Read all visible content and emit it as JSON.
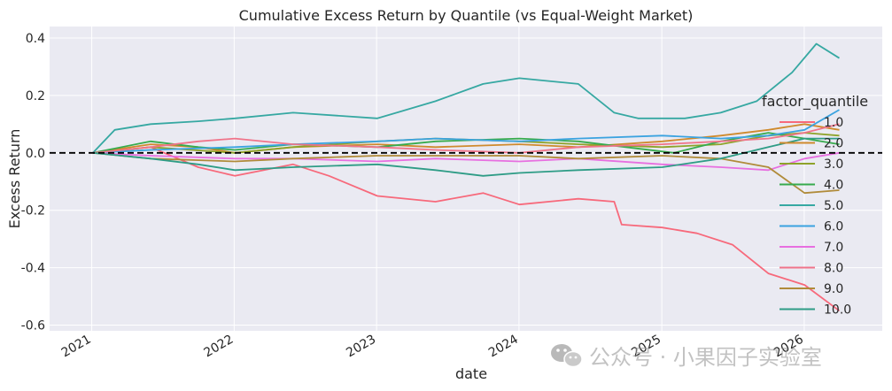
{
  "chart_data": {
    "type": "line",
    "title": "Cumulative Excess Return by Quantile (vs Equal-Weight Market)",
    "xlabel": "date",
    "ylabel": "Excess Return",
    "x_tick_labels": [
      "2021",
      "2022",
      "2023",
      "2024",
      "2025",
      "2026"
    ],
    "y_tick_labels": [
      "-0.6",
      "-0.4",
      "-0.2",
      "0.0",
      "0.2",
      "0.4"
    ],
    "y_ticks": [
      -0.6,
      -0.4,
      -0.2,
      0.0,
      0.2,
      0.4
    ],
    "xlim": [
      "2020-09-15",
      "2026-07-20"
    ],
    "ylim": [
      -0.62,
      0.44
    ],
    "reference_line": {
      "y": 0.0,
      "style": "dashed",
      "color": "#000000"
    },
    "grid": true,
    "legend": {
      "title": "factor_quantile",
      "placement": "right"
    },
    "colors": {
      "axes_bg": "#eaeaf2",
      "grid": "#ffffff",
      "tick_text": "#262626"
    },
    "series": [
      {
        "name": "1.0",
        "color": "#f7697b",
        "points": [
          [
            "2021-01-04",
            0.0
          ],
          [
            "2021-06-01",
            0.02
          ],
          [
            "2021-10-01",
            -0.05
          ],
          [
            "2022-01-03",
            -0.08
          ],
          [
            "2022-06-01",
            -0.04
          ],
          [
            "2022-09-01",
            -0.08
          ],
          [
            "2023-01-03",
            -0.15
          ],
          [
            "2023-06-01",
            -0.17
          ],
          [
            "2023-10-01",
            -0.14
          ],
          [
            "2024-01-02",
            -0.18
          ],
          [
            "2024-06-01",
            -0.16
          ],
          [
            "2024-09-01",
            -0.17
          ],
          [
            "2024-09-20",
            -0.25
          ],
          [
            "2025-01-02",
            -0.26
          ],
          [
            "2025-04-01",
            -0.28
          ],
          [
            "2025-07-01",
            -0.32
          ],
          [
            "2025-10-01",
            -0.42
          ],
          [
            "2026-01-02",
            -0.46
          ],
          [
            "2026-04-01",
            -0.55
          ]
        ]
      },
      {
        "name": "2.0",
        "color": "#cf8a2d",
        "points": [
          [
            "2021-01-04",
            0.0
          ],
          [
            "2021-06-01",
            0.03
          ],
          [
            "2021-10-01",
            0.02
          ],
          [
            "2022-01-03",
            0.0
          ],
          [
            "2022-06-01",
            0.02
          ],
          [
            "2023-01-03",
            0.03
          ],
          [
            "2023-06-01",
            0.02
          ],
          [
            "2024-01-02",
            0.03
          ],
          [
            "2024-06-01",
            0.02
          ],
          [
            "2025-01-02",
            0.04
          ],
          [
            "2025-06-01",
            0.06
          ],
          [
            "2025-10-01",
            0.08
          ],
          [
            "2026-01-02",
            0.1
          ],
          [
            "2026-04-01",
            0.08
          ]
        ]
      },
      {
        "name": "3.0",
        "color": "#8ea32a",
        "points": [
          [
            "2021-01-04",
            0.0
          ],
          [
            "2021-06-01",
            0.02
          ],
          [
            "2022-01-03",
            0.0
          ],
          [
            "2022-06-01",
            0.02
          ],
          [
            "2023-01-03",
            0.04
          ],
          [
            "2023-06-01",
            0.05
          ],
          [
            "2024-01-02",
            0.04
          ],
          [
            "2024-06-01",
            0.03
          ],
          [
            "2025-01-02",
            0.02
          ],
          [
            "2025-06-01",
            0.03
          ],
          [
            "2025-10-01",
            0.06
          ],
          [
            "2026-01-02",
            0.07
          ],
          [
            "2026-04-01",
            0.06
          ]
        ]
      },
      {
        "name": "4.0",
        "color": "#37ab4d",
        "points": [
          [
            "2021-01-04",
            0.0
          ],
          [
            "2021-06-01",
            0.04
          ],
          [
            "2021-10-01",
            0.02
          ],
          [
            "2022-01-03",
            0.01
          ],
          [
            "2022-06-01",
            0.03
          ],
          [
            "2023-01-03",
            0.02
          ],
          [
            "2023-06-01",
            0.04
          ],
          [
            "2024-01-02",
            0.05
          ],
          [
            "2024-06-01",
            0.04
          ],
          [
            "2024-10-01",
            0.02
          ],
          [
            "2025-02-01",
            0.0
          ],
          [
            "2025-06-01",
            0.04
          ],
          [
            "2025-10-01",
            0.07
          ],
          [
            "2026-01-02",
            0.05
          ],
          [
            "2026-04-01",
            0.03
          ]
        ]
      },
      {
        "name": "5.0",
        "color": "#36a8a2",
        "points": [
          [
            "2021-01-04",
            0.0
          ],
          [
            "2021-03-01",
            0.08
          ],
          [
            "2021-06-01",
            0.1
          ],
          [
            "2021-10-01",
            0.11
          ],
          [
            "2022-01-03",
            0.12
          ],
          [
            "2022-06-01",
            0.14
          ],
          [
            "2023-01-03",
            0.12
          ],
          [
            "2023-06-01",
            0.18
          ],
          [
            "2023-10-01",
            0.24
          ],
          [
            "2024-01-02",
            0.26
          ],
          [
            "2024-06-01",
            0.24
          ],
          [
            "2024-09-01",
            0.14
          ],
          [
            "2024-11-01",
            0.12
          ],
          [
            "2025-03-01",
            0.12
          ],
          [
            "2025-06-01",
            0.14
          ],
          [
            "2025-09-01",
            0.18
          ],
          [
            "2025-12-01",
            0.28
          ],
          [
            "2026-02-01",
            0.38
          ],
          [
            "2026-04-01",
            0.33
          ]
        ]
      },
      {
        "name": "6.0",
        "color": "#3ba3e0",
        "points": [
          [
            "2021-01-04",
            0.0
          ],
          [
            "2021-06-01",
            0.01
          ],
          [
            "2022-01-03",
            0.02
          ],
          [
            "2022-06-01",
            0.03
          ],
          [
            "2023-01-03",
            0.04
          ],
          [
            "2023-06-01",
            0.05
          ],
          [
            "2024-01-02",
            0.04
          ],
          [
            "2024-06-01",
            0.05
          ],
          [
            "2025-01-02",
            0.06
          ],
          [
            "2025-06-01",
            0.05
          ],
          [
            "2025-10-01",
            0.06
          ],
          [
            "2026-01-02",
            0.08
          ],
          [
            "2026-04-01",
            0.15
          ]
        ]
      },
      {
        "name": "7.0",
        "color": "#e76fe0",
        "points": [
          [
            "2021-01-04",
            0.0
          ],
          [
            "2021-06-01",
            -0.01
          ],
          [
            "2022-01-03",
            -0.02
          ],
          [
            "2022-06-01",
            -0.02
          ],
          [
            "2023-01-03",
            -0.03
          ],
          [
            "2023-06-01",
            -0.02
          ],
          [
            "2024-01-02",
            -0.03
          ],
          [
            "2024-06-01",
            -0.02
          ],
          [
            "2025-01-02",
            -0.04
          ],
          [
            "2025-06-01",
            -0.05
          ],
          [
            "2025-10-01",
            -0.06
          ],
          [
            "2026-01-02",
            -0.02
          ],
          [
            "2026-04-01",
            0.0
          ]
        ]
      },
      {
        "name": "8.0",
        "color": "#f0748a",
        "points": [
          [
            "2021-01-04",
            0.0
          ],
          [
            "2021-06-01",
            0.02
          ],
          [
            "2021-10-01",
            0.04
          ],
          [
            "2022-01-03",
            0.05
          ],
          [
            "2022-06-01",
            0.03
          ],
          [
            "2023-01-03",
            0.02
          ],
          [
            "2023-06-01",
            0.01
          ],
          [
            "2024-01-02",
            0.0
          ],
          [
            "2024-06-01",
            0.02
          ],
          [
            "2025-01-02",
            0.03
          ],
          [
            "2025-06-01",
            0.04
          ],
          [
            "2025-10-01",
            0.05
          ],
          [
            "2026-01-02",
            0.07
          ],
          [
            "2026-04-01",
            0.1
          ]
        ]
      },
      {
        "name": "9.0",
        "color": "#b08b3a",
        "points": [
          [
            "2021-01-04",
            0.0
          ],
          [
            "2021-06-01",
            -0.02
          ],
          [
            "2022-01-03",
            -0.03
          ],
          [
            "2022-06-01",
            -0.02
          ],
          [
            "2023-01-03",
            -0.01
          ],
          [
            "2023-06-01",
            -0.01
          ],
          [
            "2024-01-02",
            -0.01
          ],
          [
            "2024-06-01",
            -0.02
          ],
          [
            "2025-01-02",
            -0.01
          ],
          [
            "2025-06-01",
            -0.02
          ],
          [
            "2025-10-01",
            -0.05
          ],
          [
            "2026-01-02",
            -0.14
          ],
          [
            "2026-04-01",
            -0.13
          ]
        ]
      },
      {
        "name": "10.0",
        "color": "#2e9c86",
        "points": [
          [
            "2021-01-04",
            0.0
          ],
          [
            "2021-06-01",
            -0.02
          ],
          [
            "2021-10-01",
            -0.04
          ],
          [
            "2022-01-03",
            -0.06
          ],
          [
            "2022-06-01",
            -0.05
          ],
          [
            "2023-01-03",
            -0.04
          ],
          [
            "2023-06-01",
            -0.06
          ],
          [
            "2023-10-01",
            -0.08
          ],
          [
            "2024-01-02",
            -0.07
          ],
          [
            "2024-06-01",
            -0.06
          ],
          [
            "2025-01-02",
            -0.05
          ],
          [
            "2025-06-01",
            -0.02
          ],
          [
            "2025-10-01",
            0.02
          ],
          [
            "2026-01-02",
            0.05
          ],
          [
            "2026-04-01",
            0.05
          ]
        ]
      }
    ]
  },
  "watermark": {
    "text": "公众号 · 小果因子实验室",
    "icon": "wechat-icon"
  }
}
